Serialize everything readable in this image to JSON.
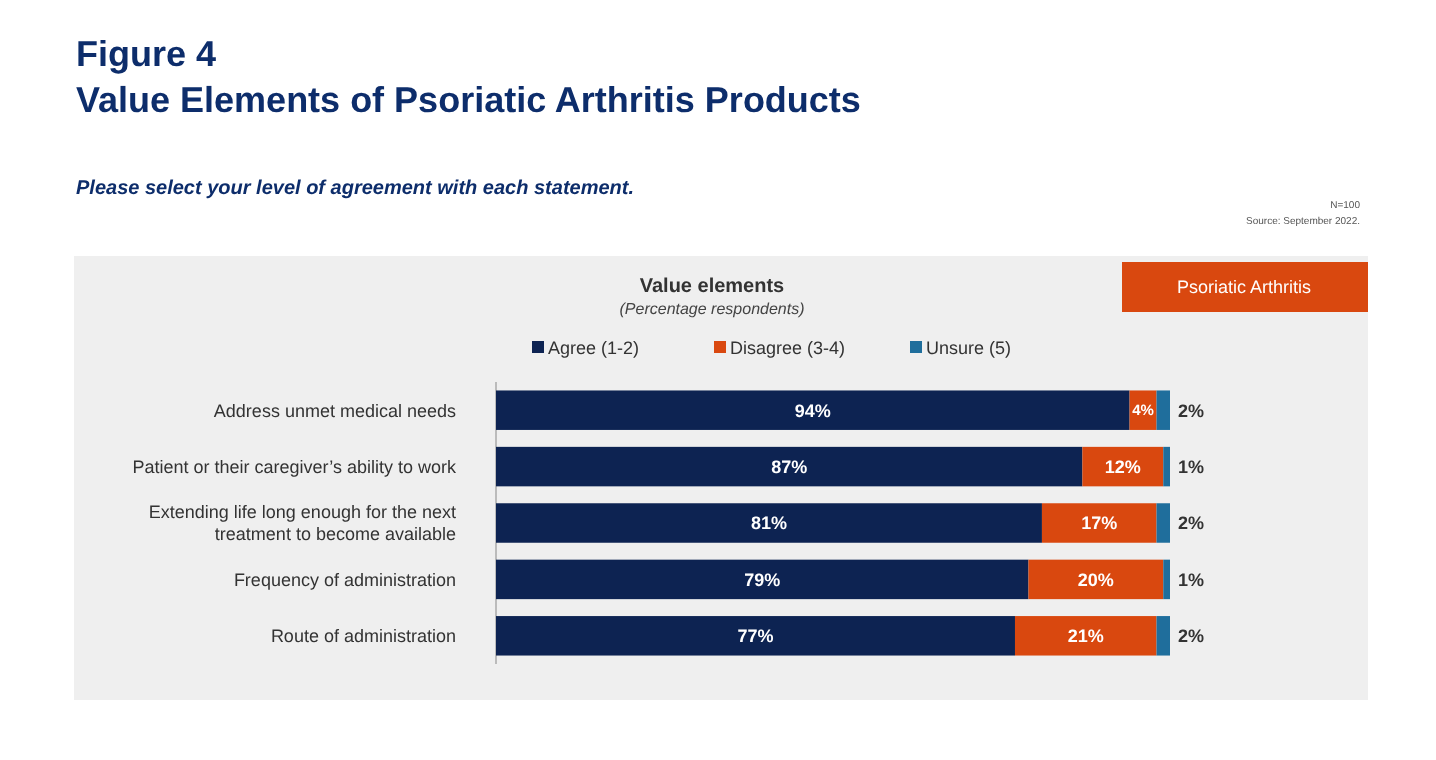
{
  "chart_data": {
    "type": "bar",
    "orientation": "horizontal",
    "stacked": true,
    "title": "Figure 4",
    "subtitle": "Value Elements of Psoriatic Arthritis Products",
    "annotations": [
      "Please select your level of agreement with each statement.",
      "N=100",
      "Source: September 2022.",
      "Value elements",
      "(Percentage respondents)",
      "Psoriatic Arthritis"
    ],
    "categories": [
      "Address unmet medical needs",
      "Patient or their caregiver’s ability to work",
      "Extending life long enough for the next treatment to become available",
      "Frequency of administration",
      "Route of administration"
    ],
    "series": [
      {
        "name": "Agree (1-2)",
        "color": "#0d2352",
        "values": [
          94,
          87,
          81,
          79,
          77
        ],
        "value_labels": [
          "94%",
          "87%",
          "81%",
          "79%",
          "77%"
        ]
      },
      {
        "name": "Disagree (3-4)",
        "color": "#d9480f",
        "values": [
          4,
          12,
          17,
          20,
          21
        ],
        "value_labels": [
          "4%",
          "12%",
          "17%",
          "20%",
          "21%"
        ]
      },
      {
        "name": "Unsure (5)",
        "color": "#1f6e9c",
        "values": [
          2,
          1,
          2,
          1,
          2
        ],
        "value_labels": [
          "2%",
          "1%",
          "2%",
          "1%",
          "2%"
        ]
      }
    ],
    "xlim": [
      0,
      100
    ],
    "legend": "top"
  }
}
